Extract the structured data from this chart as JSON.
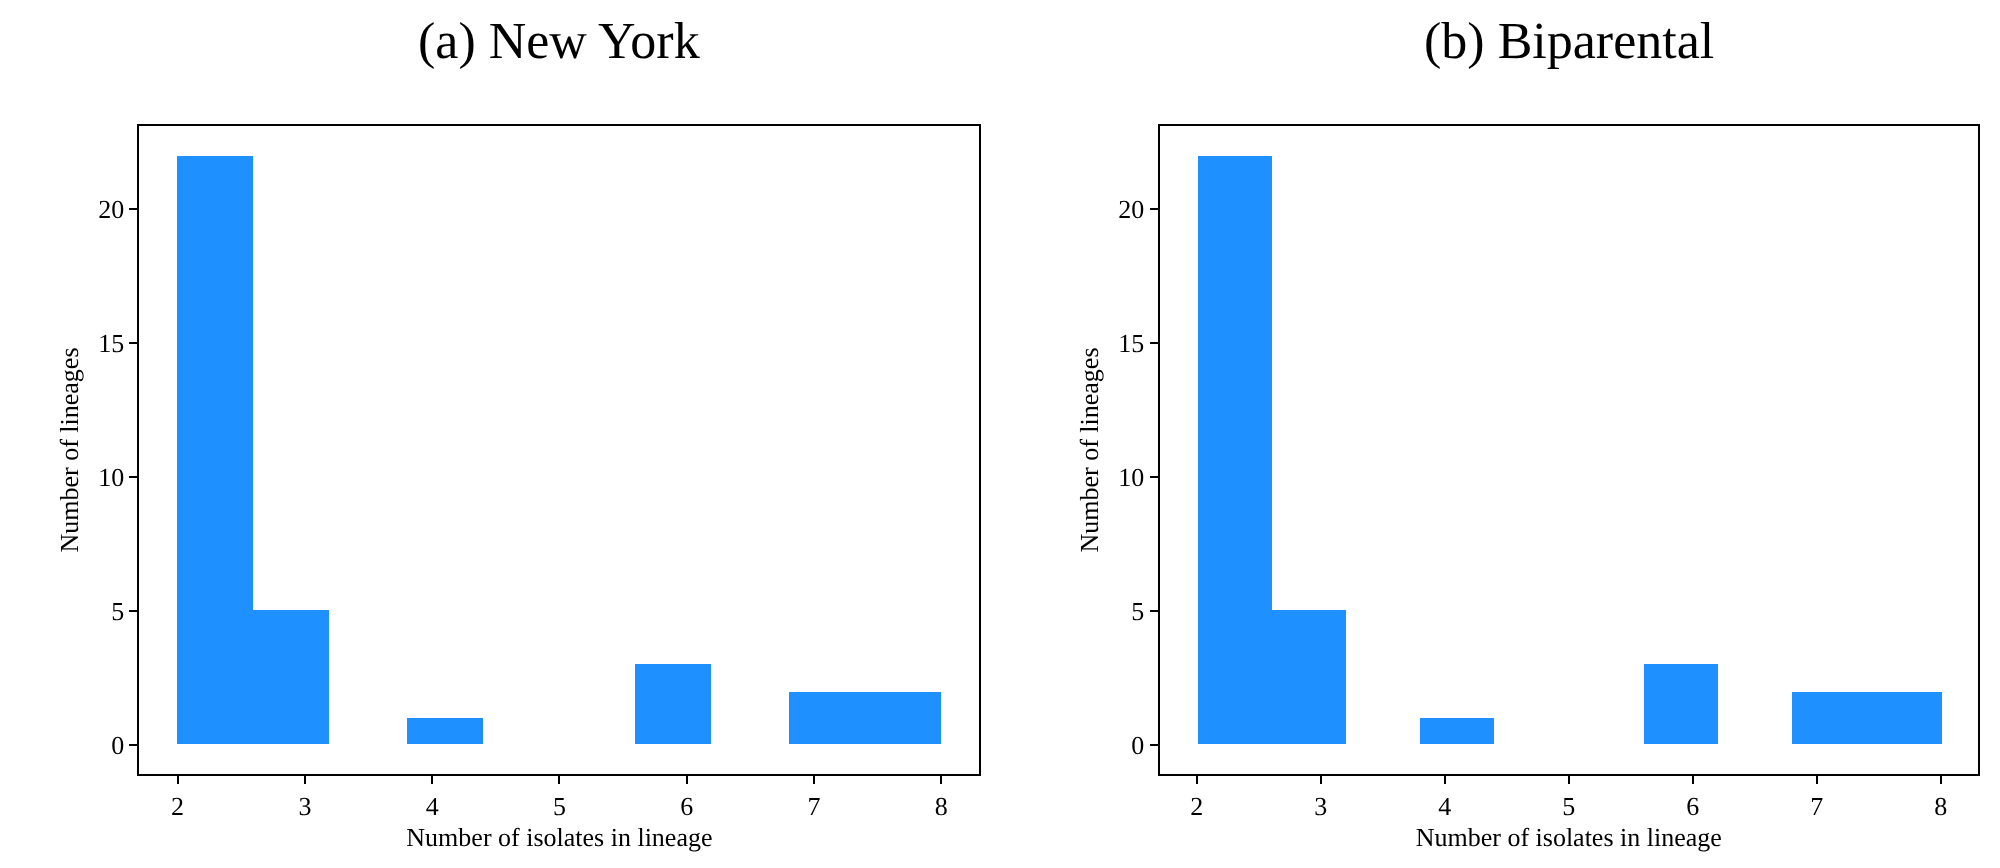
{
  "chart_data": [
    {
      "type": "histogram",
      "title": "(a) New York",
      "xlabel": "Number of isolates in lineage",
      "ylabel": "Number of lineages",
      "bins": [
        2,
        2.6,
        3.2,
        3.8,
        4.4,
        5.0,
        5.6,
        6.2,
        6.8,
        7.4,
        8
      ],
      "values": [
        22,
        5,
        0,
        1,
        0,
        0,
        3,
        0,
        2,
        2
      ],
      "color": "#1e90ff",
      "xlim": [
        1.7,
        8.3
      ],
      "ylim": [
        -1.1,
        23.1
      ],
      "xticks": [
        2,
        3,
        4,
        5,
        6,
        7,
        8
      ],
      "yticks": [
        0,
        5,
        10,
        15,
        20
      ],
      "grid": false,
      "legend": false
    },
    {
      "type": "histogram",
      "title": "(b) Biparental",
      "xlabel": "Number of isolates in lineage",
      "ylabel": "Number of lineages",
      "bins": [
        2,
        2.6,
        3.2,
        3.8,
        4.4,
        5.0,
        5.6,
        6.2,
        6.8,
        7.4,
        8
      ],
      "values": [
        22,
        5,
        0,
        1,
        0,
        0,
        3,
        0,
        2,
        2
      ],
      "color": "#1e90ff",
      "xlim": [
        1.7,
        8.3
      ],
      "ylim": [
        -1.1,
        23.1
      ],
      "xticks": [
        2,
        3,
        4,
        5,
        6,
        7,
        8
      ],
      "yticks": [
        0,
        5,
        10,
        15,
        20
      ],
      "grid": false,
      "legend": false
    }
  ]
}
